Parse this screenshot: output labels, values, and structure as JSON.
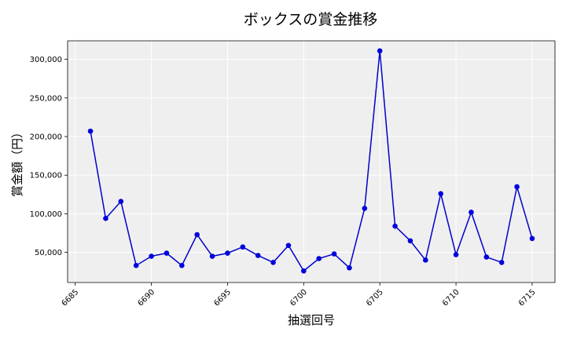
{
  "chart_data": {
    "type": "line",
    "title": "ボックスの賞金推移",
    "xlabel": "抽選回号",
    "ylabel": "賞金額（円）",
    "grid": true,
    "xlim": [
      6684.5,
      6716.5
    ],
    "ylim": [
      11000,
      324000
    ],
    "x_ticks": [
      6685,
      6690,
      6695,
      6700,
      6705,
      6710,
      6715
    ],
    "x_tick_labels": [
      "6685",
      "6690",
      "6695",
      "6700",
      "6705",
      "6710",
      "6715"
    ],
    "y_ticks": [
      50000,
      100000,
      150000,
      200000,
      250000,
      300000
    ],
    "y_tick_labels": [
      "50,000",
      "100,000",
      "150,000",
      "200,000",
      "250,000",
      "300,000"
    ],
    "colors": {
      "series": "#0000cc",
      "plot_background": "#efefef"
    },
    "series": [
      {
        "x": [
          6686,
          6687,
          6688,
          6689,
          6690,
          6691,
          6692,
          6693,
          6694,
          6695,
          6696,
          6697,
          6698,
          6699,
          6700,
          6701,
          6702,
          6703,
          6704,
          6705,
          6706,
          6707,
          6708,
          6709,
          6710,
          6711,
          6712,
          6713,
          6714,
          6715
        ],
        "values": [
          207000,
          94000,
          116000,
          33000,
          45000,
          49000,
          33000,
          73000,
          45000,
          49000,
          57000,
          46000,
          37000,
          59000,
          26000,
          42000,
          48000,
          30000,
          107000,
          311000,
          84000,
          65000,
          40000,
          126000,
          47000,
          102000,
          44000,
          37000,
          135000,
          68000
        ]
      }
    ]
  }
}
